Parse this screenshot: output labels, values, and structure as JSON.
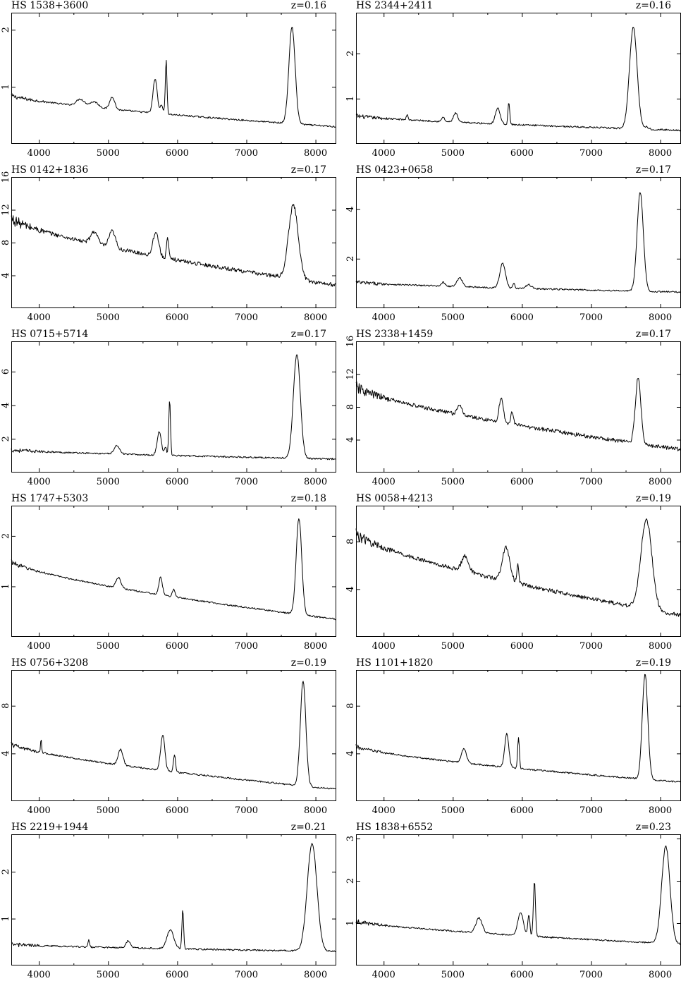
{
  "chart_data": [
    {
      "type": "line",
      "title": "HS 1538+3600",
      "annotation": "z=0.16",
      "xlim": [
        3600,
        8300
      ],
      "ylim": [
        0,
        2.3
      ],
      "xticks": [
        4000,
        5000,
        6000,
        7000,
        8000
      ],
      "yticks": [
        1,
        2
      ],
      "baseline": 0.85,
      "end": 0.3,
      "lines": [
        [
          5060,
          0.22,
          35
        ],
        [
          5680,
          0.6,
          30
        ],
        [
          5840,
          0.95,
          12
        ],
        [
          5775,
          0.15,
          20
        ],
        [
          7660,
          1.7,
          45
        ],
        [
          4600,
          0.12,
          60
        ],
        [
          4800,
          0.1,
          60
        ]
      ]
    },
    {
      "type": "line",
      "title": "HS 2344+2411",
      "annotation": "z=0.16",
      "xlim": [
        3600,
        8300
      ],
      "ylim": [
        0,
        2.9
      ],
      "xticks": [
        4000,
        5000,
        6000,
        7000,
        8000
      ],
      "yticks": [
        1,
        2
      ],
      "baseline": 0.62,
      "end": 0.3,
      "lines": [
        [
          4340,
          0.12,
          12
        ],
        [
          4860,
          0.1,
          20
        ],
        [
          5040,
          0.2,
          30
        ],
        [
          5650,
          0.35,
          35
        ],
        [
          5810,
          0.5,
          12
        ],
        [
          7610,
          2.25,
          55
        ],
        [
          7800,
          0.05,
          30
        ]
      ]
    },
    {
      "type": "line",
      "title": "HS 0142+1836",
      "annotation": "z=0.17",
      "xlim": [
        3600,
        8300
      ],
      "ylim": [
        0,
        16
      ],
      "xticks": [
        4000,
        5000,
        6000,
        7000,
        8000
      ],
      "yticks": [
        4,
        8,
        12,
        16
      ],
      "baseline": 11,
      "end": 2.8,
      "lines": [
        [
          4800,
          1.5,
          50
        ],
        [
          5060,
          2.0,
          45
        ],
        [
          5690,
          3.0,
          40
        ],
        [
          5860,
          2.5,
          15
        ],
        [
          7680,
          9,
          70
        ]
      ]
    },
    {
      "type": "line",
      "title": "HS 0423+0658",
      "annotation": "z=0.17",
      "xlim": [
        3600,
        8300
      ],
      "ylim": [
        0,
        5.3
      ],
      "xticks": [
        4000,
        5000,
        6000,
        7000,
        8000
      ],
      "yticks": [
        2,
        4
      ],
      "baseline": 1.05,
      "end": 0.65,
      "lines": [
        [
          4860,
          0.15,
          30
        ],
        [
          5100,
          0.35,
          40
        ],
        [
          5720,
          1.0,
          40
        ],
        [
          5880,
          0.2,
          15
        ],
        [
          6100,
          0.15,
          40
        ],
        [
          7710,
          4.0,
          45
        ]
      ]
    },
    {
      "type": "line",
      "title": "HS 0715+5714",
      "annotation": "z=0.17",
      "xlim": [
        3600,
        8300
      ],
      "ylim": [
        0,
        7.8
      ],
      "xticks": [
        4000,
        5000,
        6000,
        7000,
        8000
      ],
      "yticks": [
        2,
        4,
        6
      ],
      "baseline": 1.35,
      "end": 0.8,
      "lines": [
        [
          5130,
          0.5,
          40
        ],
        [
          5740,
          1.4,
          30
        ],
        [
          5890,
          3.3,
          12
        ],
        [
          5830,
          0.5,
          15
        ],
        [
          7730,
          6.2,
          50
        ]
      ]
    },
    {
      "type": "line",
      "title": "HS 2338+1459",
      "annotation": "z=0.17",
      "xlim": [
        3600,
        8300
      ],
      "ylim": [
        0,
        16
      ],
      "xticks": [
        4000,
        5000,
        6000,
        7000,
        8000
      ],
      "yticks": [
        4,
        8,
        12,
        16
      ],
      "baseline": 10.5,
      "end": 2.8,
      "lines": [
        [
          5700,
          3.0,
          30
        ],
        [
          5860,
          1.5,
          20
        ],
        [
          5100,
          1.0,
          40
        ],
        [
          7680,
          8.0,
          40
        ]
      ]
    },
    {
      "type": "line",
      "title": "HS 1747+5303",
      "annotation": "z=0.18",
      "xlim": [
        3600,
        8300
      ],
      "ylim": [
        0,
        2.6
      ],
      "xticks": [
        4000,
        5000,
        6000,
        7000,
        8000
      ],
      "yticks": [
        1,
        2
      ],
      "baseline": 1.5,
      "end": 0.35,
      "lines": [
        [
          5150,
          0.2,
          35
        ],
        [
          5760,
          0.35,
          25
        ],
        [
          5950,
          0.15,
          20
        ],
        [
          7760,
          1.9,
          40
        ]
      ]
    },
    {
      "type": "line",
      "title": "HS 0058+4213",
      "annotation": "z=0.19",
      "xlim": [
        3600,
        8300
      ],
      "ylim": [
        0,
        11
      ],
      "xticks": [
        4000,
        5000,
        6000,
        7000,
        8000
      ],
      "yticks": [
        4,
        8
      ],
      "baseline": 8.7,
      "end": 1.8,
      "lines": [
        [
          5180,
          1.3,
          50
        ],
        [
          5770,
          2.8,
          55
        ],
        [
          5940,
          1.5,
          15
        ],
        [
          7800,
          7.5,
          80
        ]
      ]
    },
    {
      "type": "line",
      "title": "HS 0756+3208",
      "annotation": "z=0.19",
      "xlim": [
        3600,
        8300
      ],
      "ylim": [
        0,
        11
      ],
      "xticks": [
        4000,
        5000,
        6000,
        7000,
        8000
      ],
      "yticks": [
        4,
        8
      ],
      "baseline": 4.8,
      "end": 1.0,
      "lines": [
        [
          4030,
          1.2,
          8
        ],
        [
          5180,
          1.3,
          35
        ],
        [
          5790,
          3.0,
          30
        ],
        [
          5960,
          1.4,
          15
        ],
        [
          7820,
          8.8,
          40
        ]
      ]
    },
    {
      "type": "line",
      "title": "HS 1101+1820",
      "annotation": "z=0.19",
      "xlim": [
        3600,
        8300
      ],
      "ylim": [
        0,
        11
      ],
      "xticks": [
        4000,
        5000,
        6000,
        7000,
        8000
      ],
      "yticks": [
        4,
        8
      ],
      "baseline": 4.6,
      "end": 1.6,
      "lines": [
        [
          5160,
          1.2,
          35
        ],
        [
          5780,
          2.8,
          30
        ],
        [
          5950,
          2.6,
          12
        ],
        [
          7780,
          8.8,
          40
        ]
      ]
    },
    {
      "type": "line",
      "title": "HS 2219+1944",
      "annotation": "z=0.21",
      "xlim": [
        3600,
        8300
      ],
      "ylim": [
        0,
        2.8
      ],
      "xticks": [
        4000,
        5000,
        6000,
        7000,
        8000
      ],
      "yticks": [
        1,
        2
      ],
      "baseline": 0.45,
      "end": 0.3,
      "lines": [
        [
          4720,
          0.15,
          10
        ],
        [
          5290,
          0.15,
          30
        ],
        [
          5900,
          0.4,
          50
        ],
        [
          6080,
          0.85,
          12
        ],
        [
          7950,
          2.3,
          70
        ]
      ]
    },
    {
      "type": "line",
      "title": "HS 1838+6552",
      "annotation": "z=0.23",
      "xlim": [
        3600,
        8300
      ],
      "ylim": [
        0,
        3.1
      ],
      "xticks": [
        4000,
        5000,
        6000,
        7000,
        8000
      ],
      "yticks": [
        1,
        2,
        3
      ],
      "baseline": 1.05,
      "end": 0.5,
      "lines": [
        [
          5380,
          0.35,
          45
        ],
        [
          5980,
          0.55,
          40
        ],
        [
          6100,
          0.5,
          15
        ],
        [
          6180,
          1.3,
          15
        ],
        [
          8080,
          2.3,
          60
        ]
      ]
    }
  ]
}
